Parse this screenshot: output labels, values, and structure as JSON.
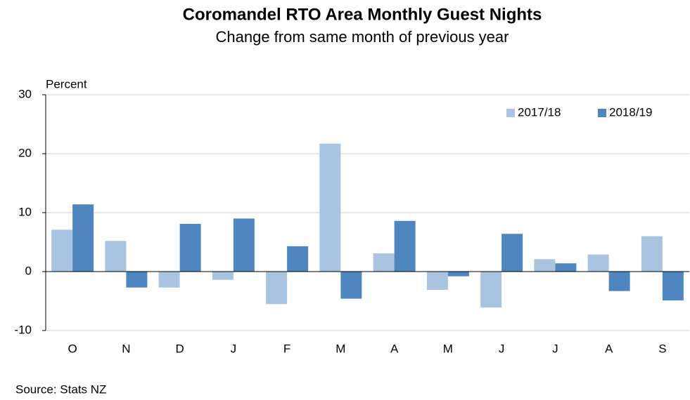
{
  "chart_data": {
    "type": "bar",
    "title": "Coromandel RTO Area Monthly Guest Nights",
    "subtitle": "Change from same month of previous year",
    "y_label": "Percent",
    "source": "Source: Stats NZ",
    "categories": [
      "O",
      "N",
      "D",
      "J",
      "F",
      "M",
      "A",
      "M",
      "J",
      "J",
      "A",
      "S"
    ],
    "series": [
      {
        "name": "2017/18",
        "color": "#a9c4e0",
        "values": [
          7.1,
          5.2,
          -2.7,
          -1.4,
          -5.5,
          21.7,
          3.1,
          -3.1,
          -6.1,
          2.1,
          2.9,
          6.0
        ]
      },
      {
        "name": "2018/19",
        "color": "#4f86c0",
        "values": [
          11.4,
          -2.7,
          8.1,
          9.0,
          4.3,
          -4.6,
          8.6,
          -0.8,
          6.4,
          1.4,
          -3.3,
          -4.9
        ]
      }
    ],
    "ylim": [
      -10,
      30
    ],
    "yticks": [
      -10,
      0,
      10,
      20,
      30
    ],
    "grid": true,
    "legend": "top-right"
  }
}
